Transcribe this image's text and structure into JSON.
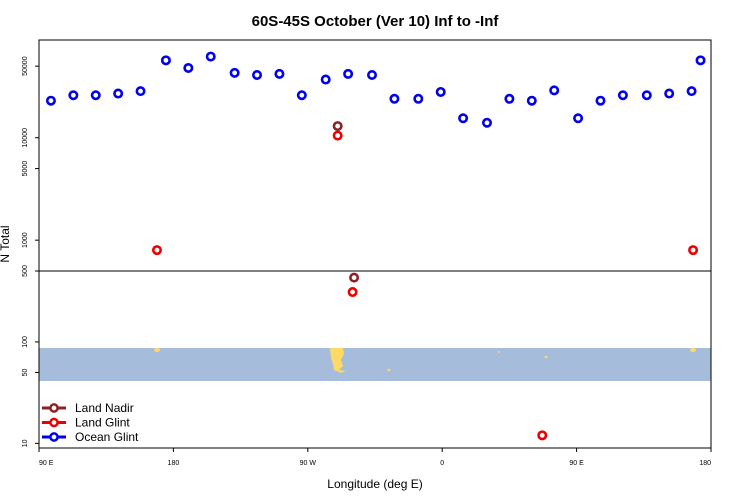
{
  "chart_data": {
    "type": "scatter",
    "title": "60S-45S October (Ver 10)   Inf to -Inf",
    "xlabel": "Longitude (deg E)",
    "ylabel": "N Total",
    "x_ticks": [
      {
        "value": 90,
        "label": "90 E"
      },
      {
        "value": 180,
        "label": "180"
      },
      {
        "value": 270,
        "label": "90 W"
      },
      {
        "value": 360,
        "label": "0"
      },
      {
        "value": 450,
        "label": "90 E"
      },
      {
        "value": 540,
        "label": "180"
      }
    ],
    "xlim": [
      90,
      540
    ],
    "y_scale": "log",
    "y_ticks_upper": [
      1000,
      5000,
      10000,
      50000
    ],
    "y_ticks_lower": [
      10,
      50,
      100,
      500
    ],
    "ylim_upper": [
      500,
      90000
    ],
    "ylim_lower": [
      9,
      500
    ],
    "reference_line_y": 500,
    "map_band": {
      "land_color": "#ffd966",
      "ocean_color": "#a6bcdb"
    },
    "series": [
      {
        "name": "Land Nadir",
        "color": "#8b2323",
        "points": [
          [
            290,
            13000
          ],
          [
            301,
            430
          ]
        ]
      },
      {
        "name": "Land Glint",
        "color": "#ee0000",
        "points": [
          [
            169,
            800
          ],
          [
            290,
            10500
          ],
          [
            300,
            310
          ],
          [
            427,
            12
          ],
          [
            528,
            800
          ]
        ]
      },
      {
        "name": "Ocean Glint",
        "color": "#0000ee",
        "points": [
          [
            98,
            23000
          ],
          [
            113,
            26000
          ],
          [
            128,
            26000
          ],
          [
            143,
            27000
          ],
          [
            158,
            28500
          ],
          [
            175,
            57000
          ],
          [
            190,
            48000
          ],
          [
            205,
            62000
          ],
          [
            221,
            43000
          ],
          [
            236,
            41000
          ],
          [
            251,
            42000
          ],
          [
            266,
            26000
          ],
          [
            282,
            37000
          ],
          [
            297,
            42000
          ],
          [
            313,
            41000
          ],
          [
            328,
            24000
          ],
          [
            344,
            24000
          ],
          [
            359,
            28000
          ],
          [
            374,
            15500
          ],
          [
            390,
            14000
          ],
          [
            405,
            24000
          ],
          [
            420,
            23000
          ],
          [
            435,
            29000
          ],
          [
            451,
            15500
          ],
          [
            466,
            23000
          ],
          [
            481,
            26000
          ],
          [
            497,
            26000
          ],
          [
            512,
            27000
          ],
          [
            527,
            28500
          ],
          [
            533,
            57000
          ]
        ]
      }
    ]
  }
}
